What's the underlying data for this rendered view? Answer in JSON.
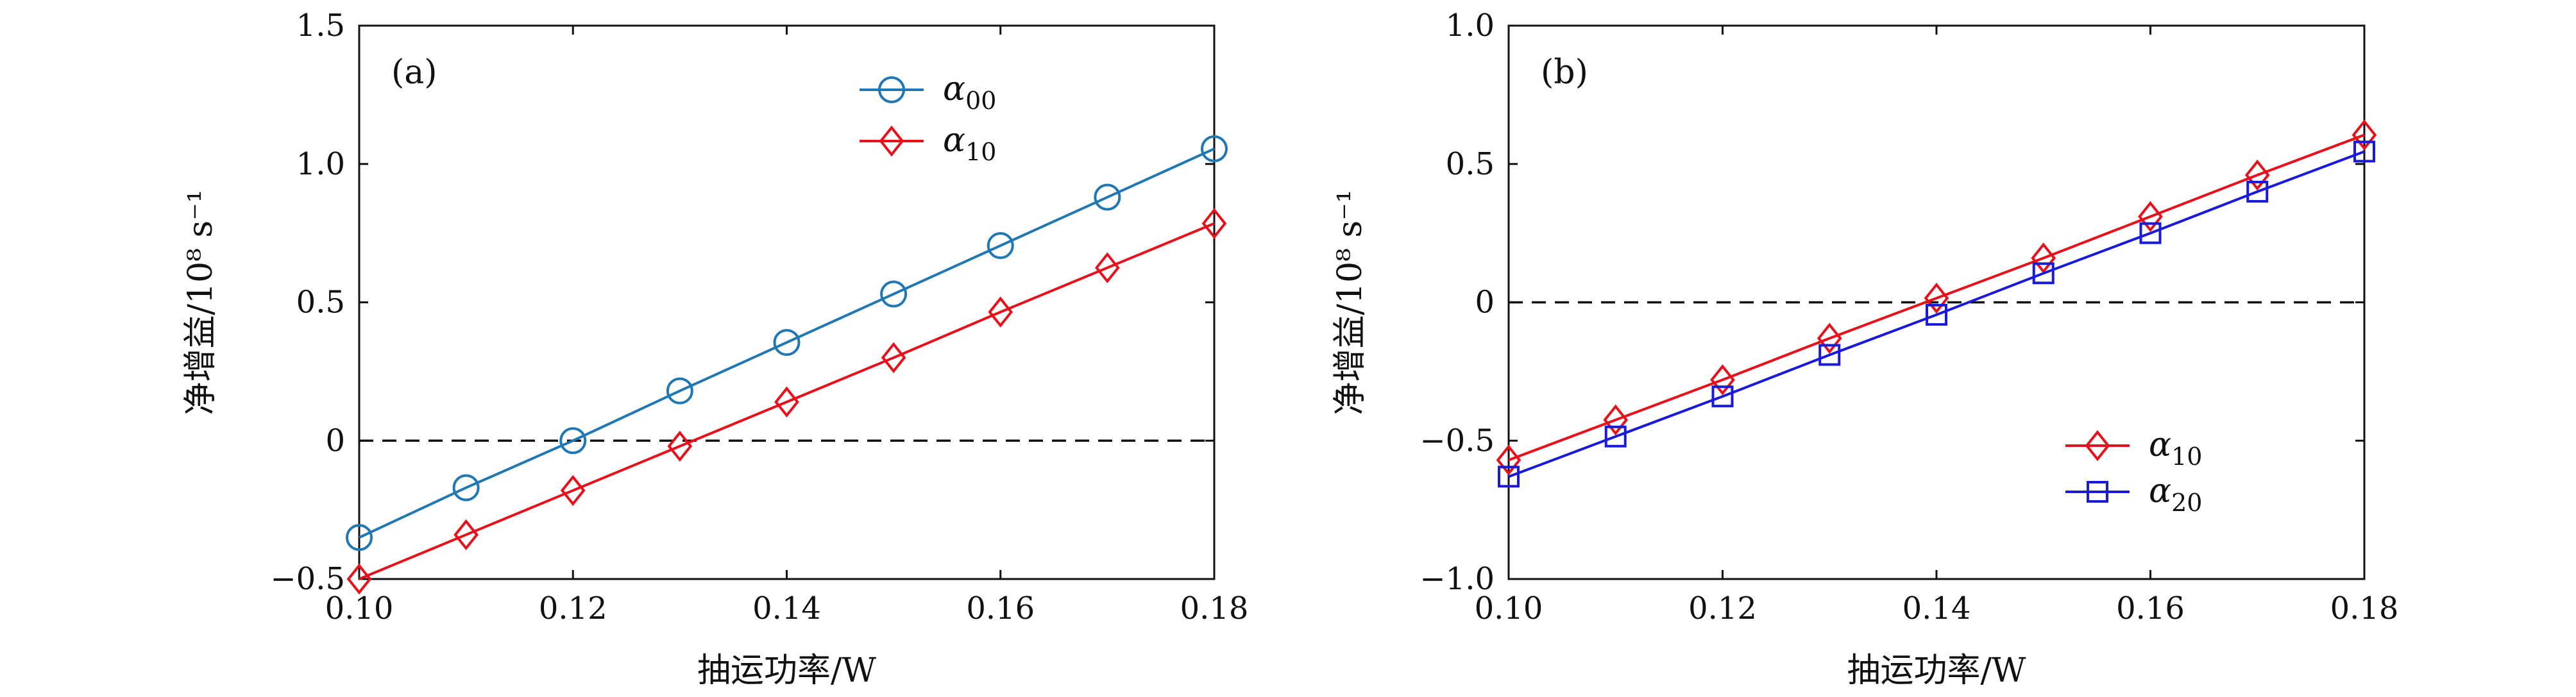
{
  "chart_data": [
    {
      "panel_label": "(a)",
      "type": "line",
      "xlabel": "抽运功率/W",
      "ylabel": "净增益/10⁸ s⁻¹",
      "xlim": [
        0.1,
        0.18
      ],
      "ylim": [
        -0.5,
        1.5
      ],
      "xticks": [
        "0.10",
        "0.12",
        "0.14",
        "0.16",
        "0.18"
      ],
      "yticks": [
        "−0.5",
        "0",
        "0.5",
        "1.0",
        "1.5"
      ],
      "x": [
        0.1,
        0.11,
        0.12,
        0.13,
        0.14,
        0.15,
        0.16,
        0.17,
        0.18
      ],
      "reference_line": {
        "y": 0,
        "style": "dashed"
      },
      "legend_position": "top-right",
      "series": [
        {
          "name": "α₀₀",
          "base": "α",
          "sub": "00",
          "marker": "circle",
          "color": "#1f77b4",
          "values": [
            -0.35,
            -0.17,
            0.0,
            0.18,
            0.355,
            0.53,
            0.705,
            0.88,
            1.055
          ]
        },
        {
          "name": "α₁₀",
          "base": "α",
          "sub": "10",
          "marker": "diamond",
          "color": "#e8101a",
          "values": [
            -0.5,
            -0.34,
            -0.18,
            -0.02,
            0.14,
            0.3,
            0.465,
            0.625,
            0.785
          ]
        }
      ]
    },
    {
      "panel_label": "(b)",
      "type": "line",
      "xlabel": "抽运功率/W",
      "ylabel": "净增益/10⁸ s⁻¹",
      "xlim": [
        0.1,
        0.18
      ],
      "ylim": [
        -1.0,
        1.0
      ],
      "xticks": [
        "0.10",
        "0.12",
        "0.14",
        "0.16",
        "0.18"
      ],
      "yticks": [
        "−1.0",
        "−0.5",
        "0",
        "0.5",
        "1.0"
      ],
      "x": [
        0.1,
        0.11,
        0.12,
        0.13,
        0.14,
        0.15,
        0.16,
        0.17,
        0.18
      ],
      "reference_line": {
        "y": 0,
        "style": "dashed"
      },
      "legend_position": "bottom-right",
      "series": [
        {
          "name": "α₁₀",
          "base": "α",
          "sub": "10",
          "marker": "diamond",
          "color": "#e8101a",
          "values": [
            -0.57,
            -0.425,
            -0.28,
            -0.13,
            0.015,
            0.16,
            0.31,
            0.46,
            0.605
          ]
        },
        {
          "name": "α₂₀",
          "base": "α",
          "sub": "20",
          "marker": "square",
          "color": "#1a1adb",
          "values": [
            -0.63,
            -0.485,
            -0.34,
            -0.19,
            -0.045,
            0.105,
            0.25,
            0.4,
            0.545
          ]
        }
      ]
    }
  ]
}
